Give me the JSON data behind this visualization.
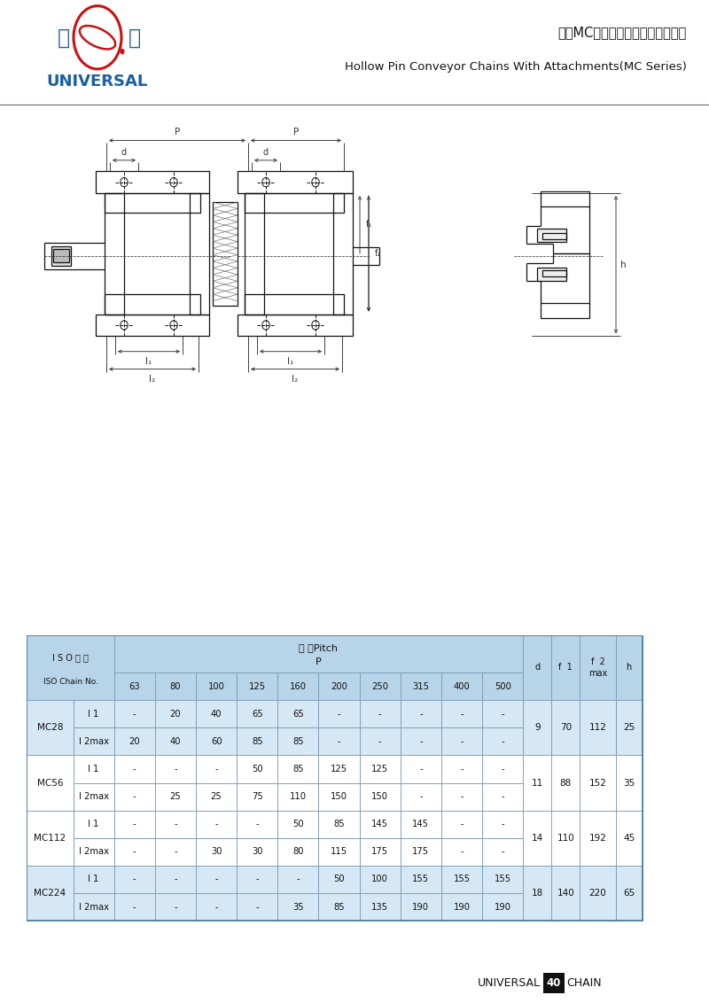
{
  "title_cn": "米刽MC系列空心销轴带附板输送链",
  "title_en": "Hollow Pin Conveyor Chains With Attachments(MC Series)",
  "brand_cn_left": "环",
  "brand_cn_right": "球",
  "brand_en": "UNIVERSAL",
  "footer_text": "UNIVERSAL",
  "footer_highlight": "40",
  "footer_suffix": "CHAIN",
  "table_header_pitch": "节 跞Pitch",
  "table_header_P": "P",
  "table_col_iso_cn": "I S O 链 号",
  "table_col_iso_en": "ISO Chain No.",
  "pitch_cols": [
    "63",
    "80",
    "100",
    "125",
    "160",
    "200",
    "250",
    "315",
    "400",
    "500"
  ],
  "chains": [
    {
      "name": "MC28",
      "rows": [
        {
          "label": "l 1",
          "values": [
            "-",
            "20",
            "40",
            "65",
            "65",
            "-",
            "-",
            "-",
            "-",
            "-"
          ]
        },
        {
          "label": "l 2max",
          "values": [
            "20",
            "40",
            "60",
            "85",
            "85",
            "-",
            "-",
            "-",
            "-",
            "-"
          ]
        }
      ],
      "right_vals": [
        "9",
        "70",
        "112",
        "25"
      ],
      "bg": "#d6e8f5"
    },
    {
      "name": "MC56",
      "rows": [
        {
          "label": "l 1",
          "values": [
            "-",
            "-",
            "-",
            "50",
            "85",
            "125",
            "125",
            "-",
            "-",
            "-"
          ]
        },
        {
          "label": "l 2max",
          "values": [
            "-",
            "25",
            "25",
            "75",
            "110",
            "150",
            "150",
            "-",
            "-",
            "-"
          ]
        }
      ],
      "right_vals": [
        "11",
        "88",
        "152",
        "35"
      ],
      "bg": "#ffffff"
    },
    {
      "name": "MC112",
      "rows": [
        {
          "label": "l 1",
          "values": [
            "-",
            "-",
            "-",
            "-",
            "50",
            "85",
            "145",
            "145",
            "-",
            "-"
          ]
        },
        {
          "label": "l 2max",
          "values": [
            "-",
            "-",
            "30",
            "30",
            "80",
            "115",
            "175",
            "175",
            "-",
            "-"
          ]
        }
      ],
      "right_vals": [
        "14",
        "110",
        "192",
        "45"
      ],
      "bg": "#ffffff"
    },
    {
      "name": "MC224",
      "rows": [
        {
          "label": "l 1",
          "values": [
            "-",
            "-",
            "-",
            "-",
            "-",
            "50",
            "100",
            "155",
            "155",
            "155"
          ]
        },
        {
          "label": "l 2max",
          "values": [
            "-",
            "-",
            "-",
            "-",
            "35",
            "85",
            "135",
            "190",
            "190",
            "190"
          ]
        }
      ],
      "right_vals": [
        "18",
        "140",
        "220",
        "65"
      ],
      "bg": "#d6e8f5"
    }
  ],
  "table_header_bg": "#b8d4e8",
  "table_border": "#888888",
  "logo_red": "#cc1111",
  "logo_blue": "#1a5fa8",
  "text_dark": "#111111"
}
